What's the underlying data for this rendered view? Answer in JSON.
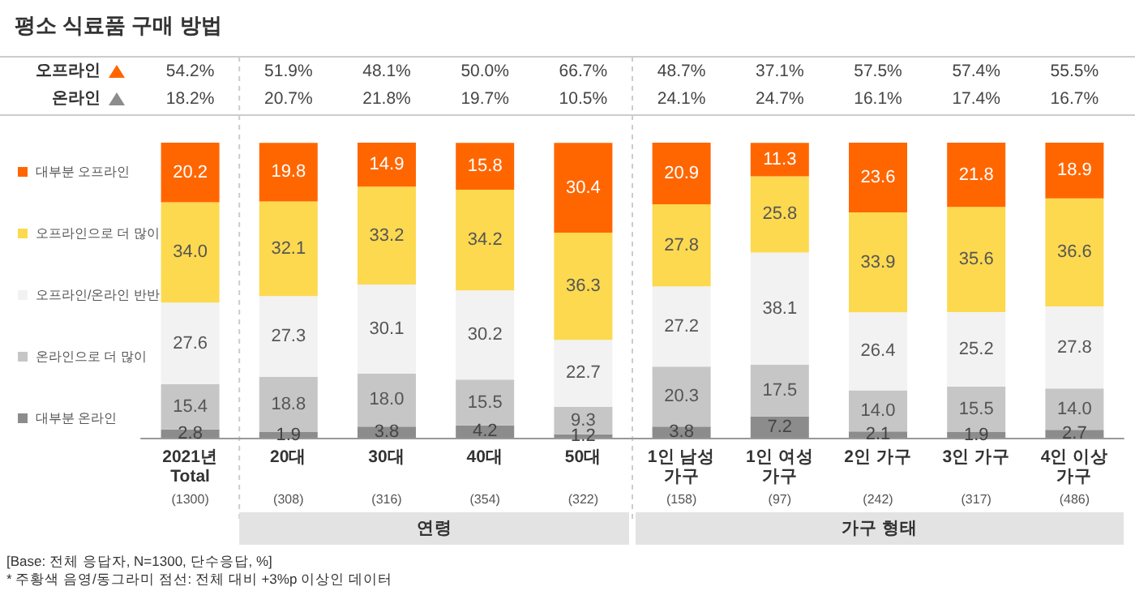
{
  "chart_data": {
    "type": "bar",
    "title": "평소 식료품 구매 방법",
    "categories": [
      "2021년\nTotal",
      "20대",
      "30대",
      "40대",
      "50대",
      "1인 남성\n가구",
      "1인 여성\n가구",
      "2인 가구",
      "3인 가구",
      "4인 이상\n가구"
    ],
    "stacked": true,
    "legend": "left",
    "grid": false,
    "tick_labels": "x",
    "ylim": [
      0,
      100
    ],
    "series": [
      {
        "name": "대부분 온라인",
        "color": "#8c8c8c",
        "values": [
          2.8,
          1.9,
          3.8,
          4.2,
          1.2,
          3.8,
          7.2,
          2.1,
          1.9,
          2.7
        ],
        "value_labels": [
          "2.8",
          "1.9",
          "3.8",
          "4.2",
          "1.2",
          "3.8",
          "7.2",
          "2.1",
          "1.9",
          "2.7"
        ]
      },
      {
        "name": "온라인으로 더 많이",
        "color": "#c6c6c6",
        "values": [
          15.4,
          18.8,
          18.0,
          15.5,
          9.3,
          20.3,
          17.5,
          14.0,
          15.5,
          14.0
        ],
        "value_labels": [
          "15.4",
          "18.8",
          "18.0",
          "15.5",
          "9.3",
          "20.3",
          "17.5",
          "14.0",
          "15.5",
          "14.0"
        ]
      },
      {
        "name": "오프라인/온라인 반반",
        "color": "#f2f2f2",
        "values": [
          27.6,
          27.3,
          30.1,
          30.2,
          22.7,
          27.2,
          38.1,
          26.4,
          25.2,
          27.8
        ],
        "value_labels": [
          "27.6",
          "27.3",
          "30.1",
          "30.2",
          "22.7",
          "27.2",
          "38.1",
          "26.4",
          "25.2",
          "27.8"
        ]
      },
      {
        "name": "오프라인으로 더 많이",
        "color": "#fcd94f",
        "values": [
          34.0,
          32.1,
          33.2,
          34.2,
          36.3,
          27.8,
          25.8,
          33.9,
          35.6,
          36.6
        ],
        "value_labels": [
          "34.0",
          "32.1",
          "33.2",
          "34.2",
          "36.3",
          "27.8",
          "25.8",
          "33.9",
          "35.6",
          "36.6"
        ]
      },
      {
        "name": "대부분 오프라인",
        "color": "#ff6600",
        "values": [
          20.2,
          19.8,
          14.9,
          15.8,
          30.4,
          20.9,
          11.3,
          23.6,
          21.8,
          18.9
        ],
        "value_labels": [
          "20.2",
          "19.8",
          "14.9",
          "15.8",
          "30.4",
          "20.9",
          "11.3",
          "23.6",
          "21.8",
          "18.9"
        ]
      }
    ],
    "annotations": [
      "오프라인",
      "온라인",
      "연령",
      "가구 형태",
      "[Base: 전체 응답자, N=1300, 단수응답, %]",
      "* 주황색 음영/동그라미 점선: 전체 대비 +3%p 이상인 데이터",
      "54.2%",
      "51.9%",
      "48.1%",
      "50.0%",
      "66.7%",
      "48.7%",
      "37.1%",
      "57.5%",
      "57.4%",
      "55.5%",
      "18.2%",
      "20.7%",
      "21.8%",
      "19.7%",
      "10.5%",
      "24.1%",
      "24.7%",
      "16.1%",
      "17.4%",
      "16.7%",
      "(1300)",
      "(308)",
      "(316)",
      "(354)",
      "(322)",
      "(158)",
      "(97)",
      "(242)",
      "(317)",
      "(486)"
    ]
  }
}
